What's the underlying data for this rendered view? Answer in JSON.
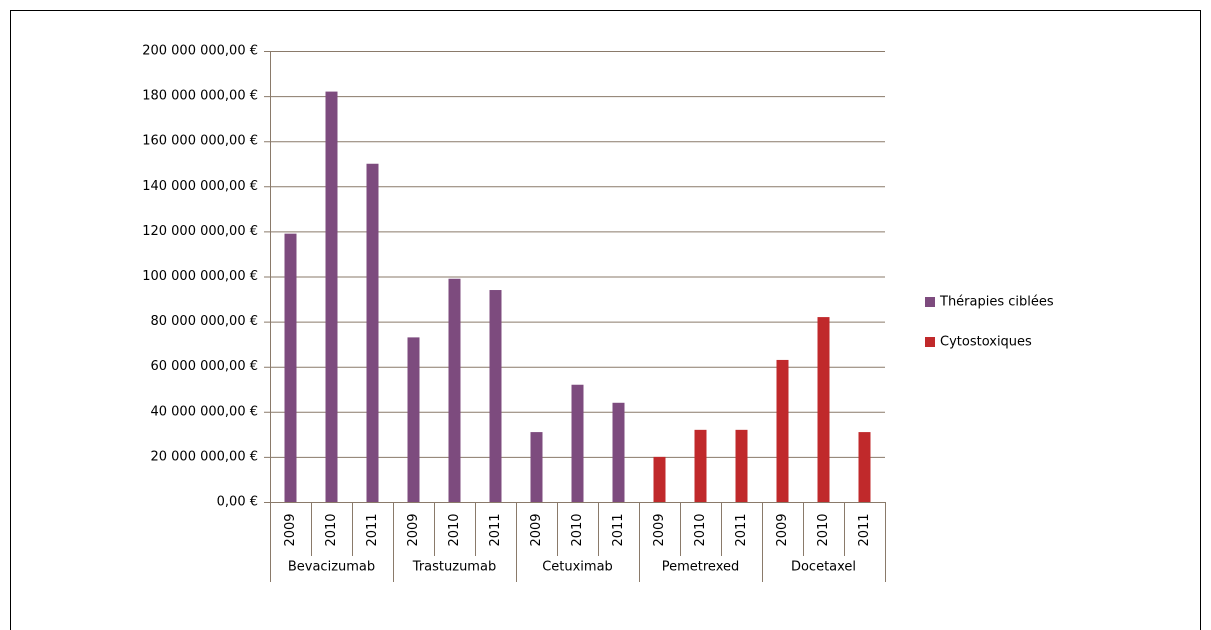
{
  "chart_data": {
    "type": "bar",
    "groups": [
      {
        "name": "Bevacizumab",
        "categories": [
          "2009",
          "2010",
          "2011"
        ]
      },
      {
        "name": "Trastuzumab",
        "categories": [
          "2009",
          "2010",
          "2011"
        ]
      },
      {
        "name": "Cetuximab",
        "categories": [
          "2009",
          "2010",
          "2011"
        ]
      },
      {
        "name": "Pemetrexed",
        "categories": [
          "2009",
          "2010",
          "2011"
        ]
      },
      {
        "name": "Docetaxel",
        "categories": [
          "2009",
          "2010",
          "2011"
        ]
      }
    ],
    "series": [
      {
        "name": "Thérapies ciblées",
        "color": "#7d4b7e",
        "values": [
          119000000,
          182000000,
          150000000,
          73000000,
          99000000,
          94000000,
          31000000,
          52000000,
          44000000,
          null,
          null,
          null,
          null,
          null,
          null
        ]
      },
      {
        "name": "Cytostoxiques",
        "color": "#c0292b",
        "values": [
          null,
          null,
          null,
          null,
          null,
          null,
          null,
          null,
          null,
          20000000,
          32000000,
          32000000,
          63000000,
          82000000,
          31000000
        ]
      }
    ],
    "ylim": [
      0,
      200000000
    ],
    "yticks": [
      {
        "value": 0,
        "label": "0,00 €"
      },
      {
        "value": 20000000,
        "label": "20 000 000,00 €"
      },
      {
        "value": 40000000,
        "label": "40 000 000,00 €"
      },
      {
        "value": 60000000,
        "label": "60 000 000,00 €"
      },
      {
        "value": 80000000,
        "label": "80 000 000,00 €"
      },
      {
        "value": 100000000,
        "label": "100 000 000,00 €"
      },
      {
        "value": 120000000,
        "label": "120 000 000,00 €"
      },
      {
        "value": 140000000,
        "label": "140 000 000,00 €"
      },
      {
        "value": 160000000,
        "label": "160 000 000,00 €"
      },
      {
        "value": 180000000,
        "label": "180 000 000,00 €"
      },
      {
        "value": 200000000,
        "label": "200 000 000,00 €"
      }
    ],
    "grid": true,
    "legend": "right"
  }
}
